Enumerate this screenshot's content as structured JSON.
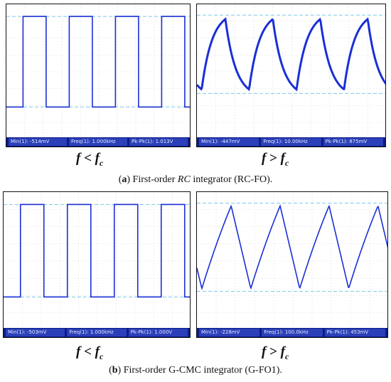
{
  "panel_a": {
    "caption": {
      "tag": "a",
      "before": "First-order ",
      "rc": "RC",
      "after": " integrator (RC-FO)."
    },
    "left": {
      "wave": "square",
      "status": [
        "Min(1): -514mV",
        "Freq(1): 1.000kHz",
        "Pk-Pk(1): 1.013V"
      ],
      "label": {
        "f": "f",
        "rel": " < ",
        "fc": "f",
        "sub": "c"
      }
    },
    "right": {
      "wave": "exponential",
      "status": [
        "Min(1): -447mV",
        "Freq(1): 10.00kHz",
        "Pk-Pk(1): 875mV"
      ],
      "label": {
        "f": "f",
        "rel": " > ",
        "fc": "f",
        "sub": "c"
      }
    }
  },
  "panel_b": {
    "caption": {
      "tag": "b",
      "before": "First-order G-CMC integrator (G-FO1)."
    },
    "left": {
      "wave": "square",
      "status": [
        "Min(1): -503mV",
        "Freq(1): 1.000kHz",
        "Pk-Pk(1): 1.000V"
      ],
      "label": {
        "f": "f",
        "rel": " < ",
        "fc": "f",
        "sub": "c"
      }
    },
    "right": {
      "wave": "triangle",
      "status": [
        "Min(1): -228mV",
        "Freq(1): 100.0kHz",
        "Pk-Pk(1): 453mV"
      ],
      "label": {
        "f": "f",
        "rel": " > ",
        "fc": "f",
        "sub": "c"
      }
    }
  },
  "colors": {
    "trace": "#1a2fd6",
    "reference": "#7fc8ee",
    "statusbar": "#0c1c86"
  }
}
